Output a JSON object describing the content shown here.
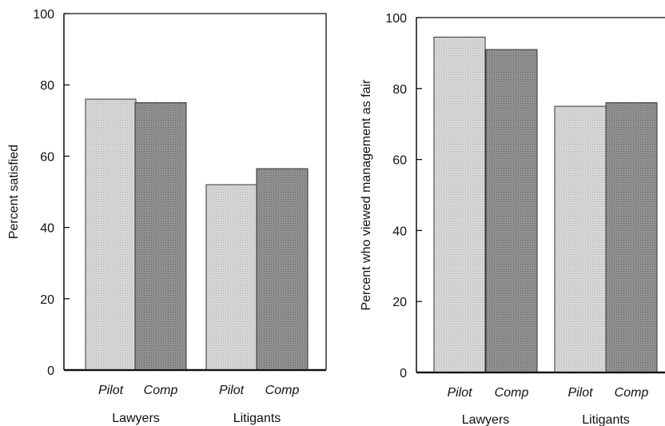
{
  "chart_data": [
    {
      "type": "bar",
      "ylabel": "Percent satisfied",
      "ylim": [
        0,
        100
      ],
      "yticks": [
        "0",
        "20",
        "40",
        "60",
        "80",
        "100"
      ],
      "groups": [
        "Lawyers",
        "Litigants"
      ],
      "bar_labels": [
        "Pilot",
        "Comp"
      ],
      "series": [
        {
          "name": "Pilot",
          "values": [
            76,
            52
          ]
        },
        {
          "name": "Comp",
          "values": [
            75,
            56.5
          ]
        }
      ],
      "colors": {
        "Pilot": "#d4d4d4",
        "Comp": "#8a8a8a"
      },
      "grid": false
    },
    {
      "type": "bar",
      "ylabel": "Percent who viewed management as fair",
      "ylim": [
        0,
        100
      ],
      "yticks": [
        "0",
        "20",
        "40",
        "60",
        "80",
        "100"
      ],
      "groups": [
        "Lawyers",
        "Litigants"
      ],
      "bar_labels": [
        "Pilot",
        "Comp"
      ],
      "series": [
        {
          "name": "Pilot",
          "values": [
            94.5,
            75
          ]
        },
        {
          "name": "Comp",
          "values": [
            91,
            76
          ]
        }
      ],
      "colors": {
        "Pilot": "#d4d4d4",
        "Comp": "#8a8a8a"
      },
      "grid": false
    }
  ]
}
